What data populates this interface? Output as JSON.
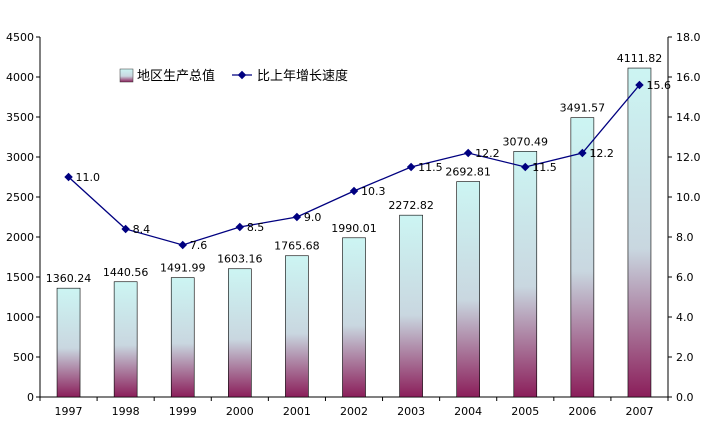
{
  "chart_data": {
    "type": "bar+line",
    "categories": [
      "1997",
      "1998",
      "1999",
      "2000",
      "2001",
      "2002",
      "2003",
      "2004",
      "2005",
      "2006",
      "2007"
    ],
    "series": [
      {
        "name": "地区生产总值",
        "type": "bar",
        "axis": "left",
        "values": [
          1360.24,
          1440.56,
          1491.99,
          1603.16,
          1765.68,
          1990.01,
          2272.82,
          2692.81,
          3070.49,
          3491.57,
          4111.82
        ],
        "labels": [
          "1360.24",
          "1440.56",
          "1491.99",
          "1603.16",
          "1765.68",
          "1990.01",
          "2272.82",
          "2692.81",
          "3070.49",
          "3491.57",
          "4111.82"
        ]
      },
      {
        "name": "比上年增长速度",
        "type": "line",
        "axis": "right",
        "values": [
          11.0,
          8.4,
          7.6,
          8.5,
          9.0,
          10.3,
          11.5,
          12.2,
          11.5,
          12.2,
          15.6
        ],
        "labels": [
          "11.0",
          "8.4",
          "7.6",
          "8.5",
          "9.0",
          "10.3",
          "11.5",
          "12.2",
          "11.5",
          "12.2",
          "15.6"
        ]
      }
    ],
    "y_left": {
      "ylim": [
        0,
        4500
      ],
      "ticks": [
        "0",
        "500",
        "1000",
        "1500",
        "2000",
        "2500",
        "3000",
        "3500",
        "4000",
        "4500"
      ]
    },
    "y_right": {
      "ylim": [
        0,
        18
      ],
      "ticks": [
        "0.0",
        "2.0",
        "4.0",
        "6.0",
        "8.0",
        "10.0",
        "12.0",
        "14.0",
        "16.0",
        "18.0"
      ]
    },
    "legend": {
      "placement": "top-left",
      "entries": [
        "地区生产总值",
        "比上年增长速度"
      ]
    },
    "grid": false,
    "colors": {
      "bar_top": "#ccf5f3",
      "bar_bottom": "#8b1e5a",
      "line": "#000080",
      "axis": "#000000"
    }
  }
}
